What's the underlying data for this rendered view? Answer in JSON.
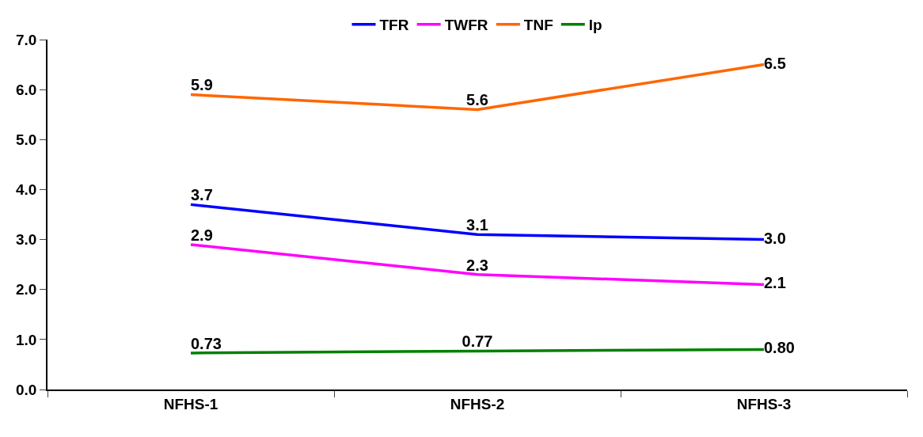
{
  "chart_data": {
    "type": "line",
    "categories": [
      "NFHS-1",
      "NFHS-2",
      "NFHS-3"
    ],
    "series": [
      {
        "name": "TFR",
        "color": "#0000ff",
        "values": [
          3.7,
          3.1,
          3.0
        ],
        "value_labels": [
          "3.7",
          "3.1",
          "3.0"
        ]
      },
      {
        "name": "TWFR",
        "color": "#ff00ff",
        "values": [
          2.9,
          2.3,
          2.1
        ],
        "value_labels": [
          "2.9",
          "2.3",
          "2.1"
        ]
      },
      {
        "name": "TNF",
        "color": "#ff6600",
        "values": [
          5.9,
          5.6,
          6.5
        ],
        "value_labels": [
          "5.9",
          "5.6",
          "6.5"
        ]
      },
      {
        "name": "Ip",
        "color": "#008000",
        "values": [
          0.73,
          0.77,
          0.8
        ],
        "value_labels": [
          "0.73",
          "0.77",
          "0.80"
        ]
      }
    ],
    "ylim": [
      0,
      7
    ],
    "yticks": [
      {
        "value": 0,
        "label": "0.0"
      },
      {
        "value": 1,
        "label": "1.0"
      },
      {
        "value": 2,
        "label": "2.0"
      },
      {
        "value": 3,
        "label": "3.0"
      },
      {
        "value": 4,
        "label": "4.0"
      },
      {
        "value": 5,
        "label": "5.0"
      },
      {
        "value": 6,
        "label": "6.0"
      },
      {
        "value": 7,
        "label": "7.0"
      }
    ],
    "legend": "top",
    "marker": "none",
    "line_style": "solid"
  }
}
